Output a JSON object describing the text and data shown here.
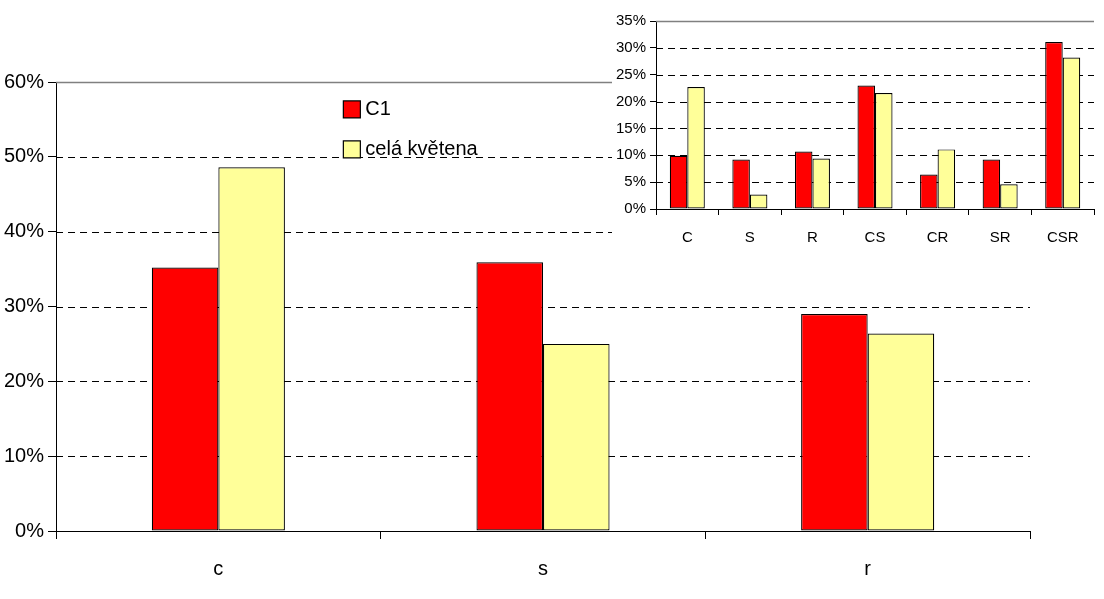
{
  "chart_data": [
    {
      "type": "bar",
      "categories": [
        "c",
        "s",
        "r"
      ],
      "series": [
        {
          "name": "C1",
          "color": "#ff0000",
          "values": [
            35.2,
            35.9,
            29.0
          ]
        },
        {
          "name": "celá květena",
          "color": "#ffff99",
          "values": [
            48.6,
            25.0,
            26.4
          ]
        }
      ],
      "ylim": [
        0,
        60
      ],
      "yticks": [
        {
          "value": 0,
          "label": "0%"
        },
        {
          "value": 10,
          "label": "10%"
        },
        {
          "value": 20,
          "label": "20%"
        },
        {
          "value": 30,
          "label": "30%"
        },
        {
          "value": 40,
          "label": "40%"
        },
        {
          "value": 50,
          "label": "50%"
        },
        {
          "value": 60,
          "label": "60%"
        }
      ],
      "grid": "y",
      "legend": "top"
    },
    {
      "type": "bar",
      "categories": [
        "C",
        "S",
        "R",
        "CS",
        "CR",
        "SR",
        "CSR"
      ],
      "series": [
        {
          "color": "#ff0000",
          "values": [
            9.9,
            9.2,
            10.7,
            23.0,
            6.4,
            9.2,
            31.1
          ]
        },
        {
          "color": "#ffff99",
          "values": [
            22.7,
            2.7,
            9.4,
            21.6,
            11.1,
            4.6,
            28.2
          ]
        }
      ],
      "ylim": [
        0,
        35
      ],
      "yticks": [
        {
          "value": 0,
          "label": "0%"
        },
        {
          "value": 5,
          "label": "5%"
        },
        {
          "value": 10,
          "label": "10%"
        },
        {
          "value": 15,
          "label": "15%"
        },
        {
          "value": 20,
          "label": "20%"
        },
        {
          "value": 25,
          "label": "25%"
        },
        {
          "value": 30,
          "label": "30%"
        },
        {
          "value": 35,
          "label": "35%"
        }
      ],
      "grid": "y"
    }
  ]
}
